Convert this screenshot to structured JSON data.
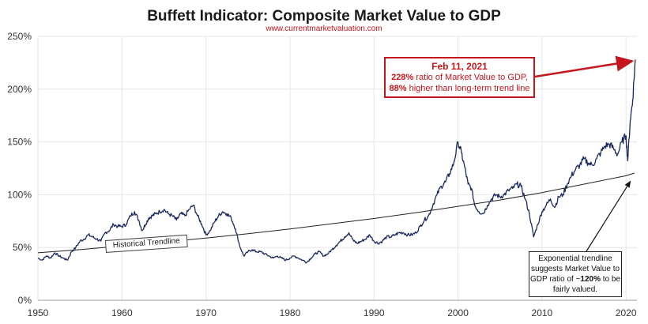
{
  "chart_data": {
    "type": "line",
    "title": "Buffett Indicator: Composite Market Value to GDP",
    "subtitle": "www.currentmarketvaluation.com",
    "xlim": [
      1950,
      2021.3
    ],
    "ylim": [
      0,
      250
    ],
    "x_ticks": [
      "1950",
      "1960",
      "1970",
      "1980",
      "1990",
      "2000",
      "2010",
      "2020"
    ],
    "y_ticks": [
      "0%",
      "50%",
      "100%",
      "150%",
      "200%",
      "250%"
    ],
    "grid": true,
    "series": [
      {
        "x": [
          1950.0,
          1950.5,
          1951.0,
          1951.5,
          1952.0,
          1952.5,
          1953.0,
          1953.5,
          1954.0,
          1954.5,
          1955.0,
          1955.5,
          1956.0,
          1956.5,
          1957.0,
          1957.5,
          1958.0,
          1958.5,
          1959.0,
          1959.5,
          1960.0,
          1960.5,
          1961.0,
          1961.5,
          1962.0,
          1962.4,
          1962.8,
          1963.2,
          1963.6,
          1964.0,
          1964.5,
          1965.0,
          1965.5,
          1966.0,
          1966.5,
          1967.0,
          1967.5,
          1968.0,
          1968.5,
          1969.0,
          1969.5,
          1970.0,
          1970.5,
          1971.0,
          1971.5,
          1972.0,
          1972.5,
          1973.0,
          1973.5,
          1974.0,
          1974.5,
          1975.0,
          1975.5,
          1976.0,
          1976.5,
          1977.0,
          1977.5,
          1978.0,
          1978.5,
          1979.0,
          1979.5,
          1980.0,
          1980.5,
          1981.0,
          1981.5,
          1982.0,
          1982.5,
          1983.0,
          1983.5,
          1984.0,
          1984.5,
          1985.0,
          1985.5,
          1986.0,
          1986.5,
          1987.0,
          1987.6,
          1988.0,
          1988.5,
          1989.0,
          1989.5,
          1990.0,
          1990.5,
          1991.0,
          1991.5,
          1992.0,
          1992.5,
          1993.0,
          1993.5,
          1994.0,
          1994.5,
          1995.0,
          1995.5,
          1996.0,
          1996.5,
          1997.0,
          1997.5,
          1998.0,
          1998.5,
          1999.0,
          1999.5,
          2000.0,
          2000.4,
          2000.8,
          2001.2,
          2001.6,
          2002.0,
          2002.5,
          2003.0,
          2003.5,
          2004.0,
          2004.5,
          2005.0,
          2005.5,
          2006.0,
          2006.5,
          2007.0,
          2007.5,
          2008.0,
          2008.5,
          2009.0,
          2009.5,
          2010.0,
          2010.5,
          2011.0,
          2011.5,
          2012.0,
          2012.5,
          2013.0,
          2013.5,
          2014.0,
          2014.5,
          2015.0,
          2015.5,
          2016.0,
          2016.5,
          2017.0,
          2017.5,
          2018.0,
          2018.5,
          2019.0,
          2019.5,
          2020.0,
          2020.2,
          2020.5,
          2020.8,
          2021.1
        ],
        "values": [
          40,
          38,
          42,
          40,
          45,
          42,
          40,
          38,
          46,
          50,
          56,
          58,
          62,
          60,
          58,
          56,
          64,
          66,
          72,
          70,
          70,
          72,
          80,
          84,
          76,
          66,
          72,
          78,
          80,
          82,
          84,
          86,
          82,
          80,
          76,
          82,
          80,
          86,
          90,
          80,
          72,
          62,
          66,
          74,
          80,
          84,
          82,
          78,
          68,
          52,
          42,
          46,
          48,
          46,
          46,
          44,
          42,
          40,
          42,
          40,
          38,
          40,
          42,
          40,
          38,
          36,
          40,
          44,
          46,
          42,
          44,
          48,
          52,
          56,
          60,
          64,
          56,
          54,
          56,
          58,
          62,
          56,
          54,
          56,
          60,
          60,
          62,
          64,
          64,
          62,
          62,
          64,
          70,
          76,
          80,
          90,
          100,
          108,
          112,
          120,
          130,
          150,
          140,
          126,
          110,
          106,
          90,
          84,
          82,
          90,
          96,
          100,
          98,
          100,
          104,
          106,
          110,
          108,
          96,
          82,
          60,
          72,
          84,
          90,
          96,
          88,
          98,
          100,
          110,
          118,
          124,
          128,
          134,
          130,
          128,
          134,
          140,
          146,
          148,
          144,
          138,
          150,
          156,
          132,
          170,
          190,
          228
        ]
      },
      {
        "name": "Historical Trendline",
        "x": [
          1950,
          1955,
          1960,
          1965,
          1970,
          1975,
          1980,
          1985,
          1990,
          1995,
          2000,
          2005,
          2010,
          2015,
          2020,
          2021
        ],
        "values": [
          45,
          48,
          51.5,
          55,
          59,
          63,
          67.5,
          72.5,
          77.5,
          83,
          89,
          95,
          102,
          110,
          118,
          120.5
        ]
      }
    ],
    "annotations": {
      "peak": {
        "date": "Feb 11, 2021",
        "value": "228%",
        "line1_rest": " ratio of Market Value to GDP,",
        "pct": "88%",
        "line2_rest": " higher than long-term trend line",
        "x": 2021.1,
        "y": 228
      },
      "trend_note": {
        "line1": "Exponential trendline",
        "line2": "suggests Market Value to",
        "line3_pre": "GDP ratio of ~",
        "line3_bold": "120%",
        "line3_post": " to be",
        "line4": "fairly valued.",
        "x": 2020.5,
        "y": 117
      }
    },
    "colors": {
      "series": "#1b2a5e",
      "trend": "#222222",
      "accent": "#c4161c",
      "grid": "#e6e6e6"
    }
  }
}
